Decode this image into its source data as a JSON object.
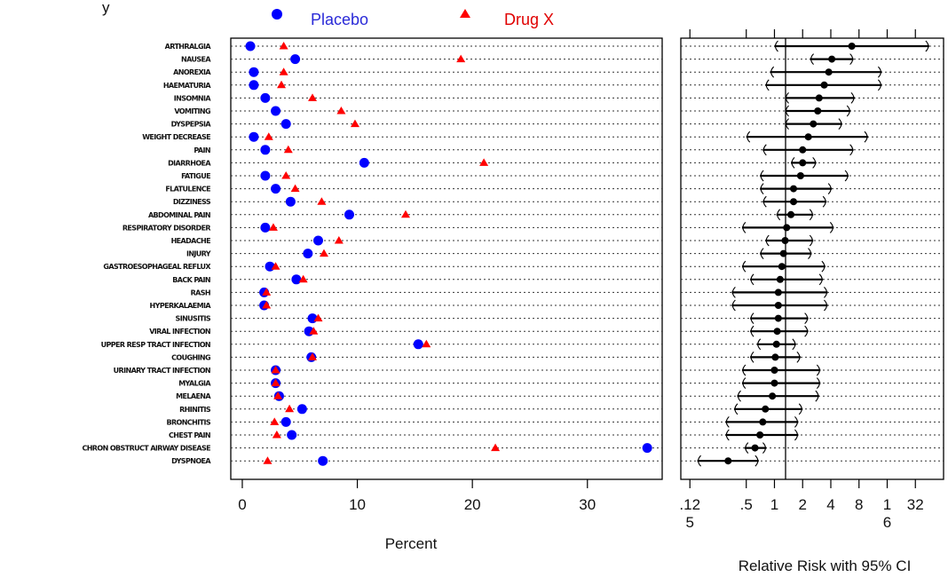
{
  "top_text": "y",
  "legend": {
    "placebo_label": "Placebo",
    "drug_label": "Drug X",
    "placebo_color": "#0000ff",
    "drug_color": "#ff0000"
  },
  "chart_data": [
    {
      "type": "scatter",
      "title": "",
      "xlabel": "Percent",
      "xlim": [
        -1,
        36.5
      ],
      "xticks": [
        0,
        10,
        20,
        30
      ],
      "tick_labels": [
        "0",
        "10",
        "20",
        "30"
      ],
      "grid": "dotted horizontal lines",
      "categories": [
        "ARTHRALGIA",
        "NAUSEA",
        "ANOREXIA",
        "HAEMATURIA",
        "INSOMNIA",
        "VOMITING",
        "DYSPEPSIA",
        "WEIGHT DECREASE",
        "PAIN",
        "DIARRHOEA",
        "FATIGUE",
        "FLATULENCE",
        "DIZZINESS",
        "ABDOMINAL PAIN",
        "RESPIRATORY DISORDER",
        "HEADACHE",
        "INJURY",
        "GASTROESOPHAGEAL REFLUX",
        "BACK PAIN",
        "RASH",
        "HYPERKALAEMIA",
        "SINUSITIS",
        "VIRAL INFECTION",
        "UPPER RESP TRACT INFECTION",
        "COUGHING",
        "URINARY TRACT INFECTION",
        "MYALGIA",
        "MELAENA",
        "RHINITIS",
        "BRONCHITIS",
        "CHEST PAIN",
        "CHRON OBSTRUCT AIRWAY DISEASE",
        "DYSPNOEA"
      ],
      "series": [
        {
          "name": "Placebo",
          "marker": "circle",
          "color": "#0000ff",
          "values": [
            0.7,
            4.6,
            1.0,
            1.0,
            2.0,
            2.9,
            3.8,
            1.0,
            2.0,
            10.6,
            2.0,
            2.9,
            4.2,
            9.3,
            2.0,
            6.6,
            5.7,
            2.4,
            4.7,
            1.9,
            1.9,
            6.1,
            5.8,
            15.3,
            6.0,
            2.9,
            2.9,
            3.2,
            5.2,
            3.8,
            4.3,
            35.2,
            7.0
          ]
        },
        {
          "name": "Drug X",
          "marker": "triangle",
          "color": "#ff0000",
          "values": [
            3.6,
            19.0,
            3.6,
            3.4,
            6.1,
            8.6,
            9.8,
            2.3,
            4.0,
            21.0,
            3.8,
            4.6,
            6.9,
            14.2,
            2.7,
            8.4,
            7.1,
            2.9,
            5.3,
            2.1,
            2.1,
            6.6,
            6.2,
            16.0,
            6.1,
            2.9,
            2.9,
            3.1,
            4.1,
            2.8,
            3.0,
            22.0,
            2.2
          ]
        }
      ]
    },
    {
      "type": "scatter",
      "title": "",
      "xlabel": "Relative Risk with 95% CI",
      "scale": "log2",
      "xlim": [
        0.1,
        64
      ],
      "xtick_values": [
        0.125,
        0.5,
        1,
        2,
        4,
        8,
        16,
        32
      ],
      "tick_labels": [
        ".12\n5",
        ".5",
        "1",
        "2",
        "4",
        "8",
        "1\n6",
        "32"
      ],
      "reference_line": 1,
      "grid": "dotted horizontal lines",
      "categories": [
        "ARTHRALGIA",
        "NAUSEA",
        "ANOREXIA",
        "HAEMATURIA",
        "INSOMNIA",
        "VOMITING",
        "DYSPEPSIA",
        "WEIGHT DECREASE",
        "PAIN",
        "DIARRHOEA",
        "FATIGUE",
        "FLATULENCE",
        "DIZZINESS",
        "ABDOMINAL PAIN",
        "RESPIRATORY DISORDER",
        "HEADACHE",
        "INJURY",
        "GASTROESOPHAGEAL REFLUX",
        "BACK PAIN",
        "RASH",
        "HYPERKALAEMIA",
        "SINUSITIS",
        "VIRAL INFECTION",
        "UPPER RESP TRACT INFECTION",
        "COUGHING",
        "URINARY TRACT INFECTION",
        "MYALGIA",
        "MELAENA",
        "RHINITIS",
        "BRONCHITIS",
        "CHEST PAIN",
        "CHRON OBSTRUCT AIRWAY DISEASE",
        "DYSPNOEA"
      ],
      "relative_risk": [
        6.7,
        4.1,
        3.8,
        3.4,
        3.0,
        2.9,
        2.6,
        2.3,
        2.0,
        2.0,
        1.9,
        1.6,
        1.6,
        1.5,
        1.35,
        1.3,
        1.25,
        1.2,
        1.15,
        1.1,
        1.1,
        1.1,
        1.07,
        1.05,
        1.02,
        1.0,
        1.0,
        0.95,
        0.8,
        0.75,
        0.7,
        0.62,
        0.32
      ],
      "ci_low": [
        1.0,
        2.4,
        0.9,
        0.8,
        1.3,
        1.3,
        1.3,
        0.5,
        0.75,
        1.5,
        0.7,
        0.7,
        0.75,
        1.05,
        0.45,
        0.8,
        0.7,
        0.45,
        0.55,
        0.35,
        0.35,
        0.55,
        0.55,
        0.65,
        0.55,
        0.45,
        0.45,
        0.4,
        0.37,
        0.3,
        0.3,
        0.48,
        0.15
      ],
      "ci_high": [
        45,
        7.0,
        14,
        14,
        7.2,
        6.5,
        5.3,
        10.0,
        7.0,
        2.8,
        6.2,
        4.1,
        3.6,
        2.6,
        4.3,
        2.6,
        2.5,
        3.5,
        3.3,
        3.7,
        3.7,
        2.3,
        2.3,
        1.7,
        1.9,
        3.1,
        3.1,
        3.0,
        2.0,
        1.8,
        1.8,
        0.82,
        0.68
      ]
    }
  ]
}
